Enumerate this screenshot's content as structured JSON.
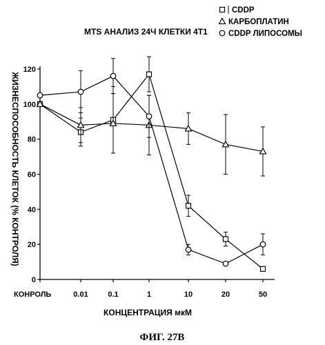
{
  "chart_data": {
    "type": "line",
    "title": "MTS АНАЛИЗ 24Ч КЛЕТКИ 4T1",
    "xlabel": "КОНЦЕНТРАЦИЯ мкМ",
    "ylabel": "ЖИЗНЕСПОСОБНОСТЬ КЛЕТОК (% КОНТРОЛЯ)",
    "categories": [
      "КОНРОЛЬ",
      "0.01",
      "0.1",
      "1",
      "10",
      "20",
      "50"
    ],
    "ylim": [
      0,
      120
    ],
    "yticks": [
      0,
      20,
      40,
      60,
      80,
      100,
      120
    ],
    "legend_position": "top-right",
    "series": [
      {
        "name": "CDDP",
        "marker": "square",
        "values": [
          100,
          84,
          91,
          117,
          42,
          23,
          6
        ],
        "errors": [
          0,
          8,
          19,
          10,
          6,
          4,
          0
        ]
      },
      {
        "name": "КАРБОПЛАТИН",
        "marker": "triangle",
        "values": [
          100,
          88,
          89,
          88,
          86,
          77,
          73
        ],
        "errors": [
          0,
          10,
          17,
          17,
          9,
          17,
          14
        ]
      },
      {
        "name": "CDDP ЛИПОСОМЫ",
        "marker": "circle",
        "values": [
          105,
          107,
          116,
          93,
          17,
          9,
          20
        ],
        "errors": [
          0,
          12,
          10,
          12,
          3,
          0,
          6
        ]
      }
    ]
  },
  "caption": "ФИГ. 27В"
}
